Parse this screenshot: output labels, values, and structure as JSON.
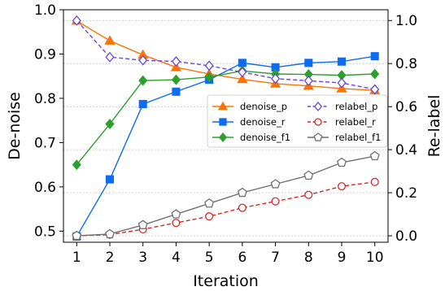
{
  "chart_data": {
    "type": "line",
    "x": [
      1,
      2,
      3,
      4,
      5,
      6,
      7,
      8,
      9,
      10
    ],
    "xlabel": "Iteration",
    "ylabel_left": "De-noise",
    "ylabel_right": "Re-label",
    "xlim": [
      0.6,
      10.4
    ],
    "ylim_left": [
      0.475,
      1.0
    ],
    "ylim_right": [
      -0.03,
      1.05
    ],
    "xticks": [
      "1",
      "2",
      "3",
      "4",
      "5",
      "6",
      "7",
      "8",
      "9",
      "10"
    ],
    "yticks_left": [
      "0.5",
      "0.6",
      "0.7",
      "0.8",
      "0.9",
      "1.0"
    ],
    "yticks_right": [
      "0.0",
      "0.2",
      "0.4",
      "0.6",
      "0.8",
      "1.0"
    ],
    "grid": "horizontal dotted",
    "legend_position": "center-right",
    "series": [
      {
        "name": "denoise_p",
        "axis": "left",
        "color": "#f97306",
        "marker": "triangle",
        "dash": "solid",
        "values": [
          0.975,
          0.93,
          0.898,
          0.87,
          0.855,
          0.843,
          0.833,
          0.828,
          0.822,
          0.818
        ]
      },
      {
        "name": "denoise_r",
        "axis": "left",
        "color": "#0e6cf0",
        "marker": "square",
        "dash": "solid",
        "values": [
          0.488,
          0.617,
          0.787,
          0.815,
          0.842,
          0.88,
          0.87,
          0.88,
          0.883,
          0.895
        ]
      },
      {
        "name": "denoise_f1",
        "axis": "left",
        "color": "#2ca02c",
        "marker": "diamond",
        "dash": "solid",
        "values": [
          0.65,
          0.742,
          0.84,
          0.842,
          0.848,
          0.862,
          0.855,
          0.854,
          0.852,
          0.855
        ]
      },
      {
        "name": "relabel_p",
        "axis": "right",
        "color": "#6a45e0",
        "marker": "diamond-open",
        "dash": "dashed",
        "values": [
          1.0,
          0.83,
          0.815,
          0.81,
          0.79,
          0.76,
          0.73,
          0.72,
          0.71,
          0.68
        ]
      },
      {
        "name": "relabel_r",
        "axis": "right",
        "color": "#d62728",
        "marker": "circle-open",
        "dash": "dashed",
        "values": [
          0.0,
          0.005,
          0.03,
          0.06,
          0.09,
          0.13,
          0.16,
          0.19,
          0.23,
          0.25
        ]
      },
      {
        "name": "relabel_f1",
        "axis": "right",
        "color": "#707070",
        "marker": "pentagon-open",
        "dash": "solid",
        "values": [
          0.0,
          0.008,
          0.05,
          0.1,
          0.15,
          0.2,
          0.24,
          0.28,
          0.34,
          0.37
        ]
      }
    ]
  }
}
